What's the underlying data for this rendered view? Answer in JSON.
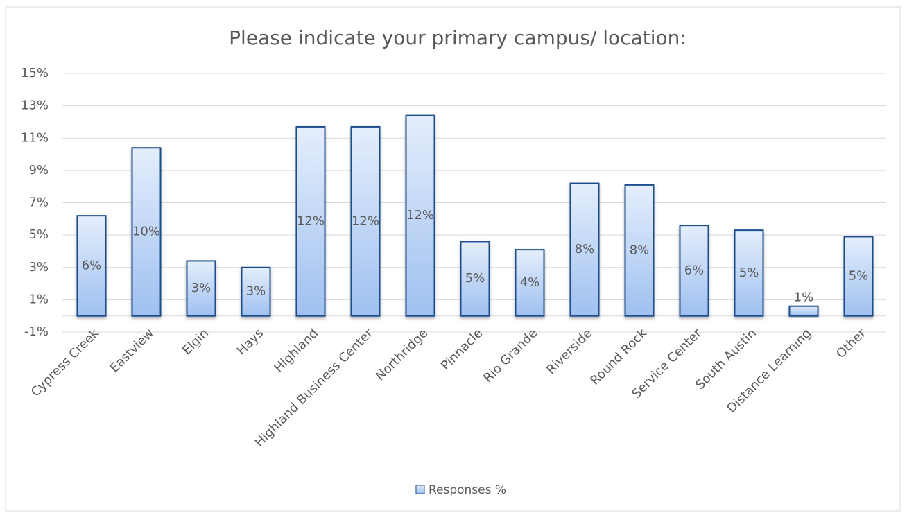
{
  "chart_data": {
    "type": "bar",
    "title": "Please indicate your primary campus/ location:",
    "categories": [
      "Cypress Creek",
      "Eastview",
      "Elgin",
      "Hays",
      "Highland",
      "Highland Business Center",
      "Northridge",
      "Pinnacle",
      "Rio Grande",
      "Riverside",
      "Round Rock",
      "Service Center",
      "South Austin",
      "Distance Learning",
      "Other"
    ],
    "series": [
      {
        "name": "Responses %",
        "color": "#9fc0f0",
        "edgecolor": "#1f4e8c",
        "values": [
          6.2,
          10.4,
          3.4,
          3.0,
          11.7,
          11.7,
          12.4,
          4.6,
          4.1,
          8.2,
          8.1,
          5.6,
          5.3,
          0.6,
          4.9
        ],
        "value_labels": [
          "6%",
          "10%",
          "3%",
          "3%",
          "12%",
          "12%",
          "12%",
          "5%",
          "4%",
          "8%",
          "8%",
          "6%",
          "5%",
          "1%",
          "5%"
        ]
      }
    ],
    "ylim": [
      -1,
      15
    ],
    "yticks": [
      {
        "value": -1,
        "label": "-1%"
      },
      {
        "value": 1,
        "label": "1%"
      },
      {
        "value": 3,
        "label": "3%"
      },
      {
        "value": 5,
        "label": "5%"
      },
      {
        "value": 7,
        "label": "7%"
      },
      {
        "value": 9,
        "label": "9%"
      },
      {
        "value": 11,
        "label": "11%"
      },
      {
        "value": 13,
        "label": "13%"
      },
      {
        "value": 15,
        "label": "15%"
      }
    ],
    "grid": true,
    "legend": "bottom"
  }
}
